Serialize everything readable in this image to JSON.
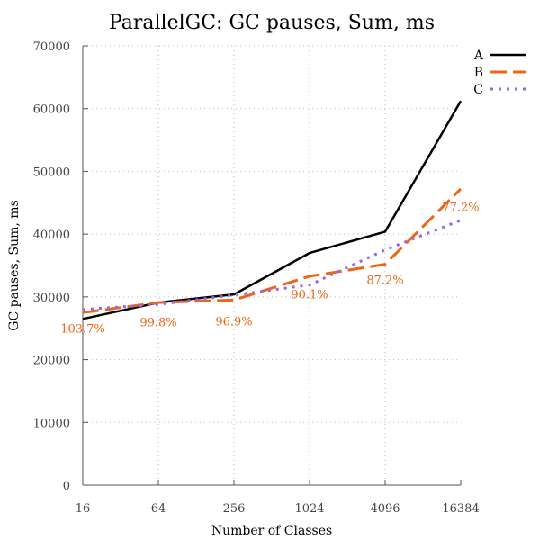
{
  "chart_data": {
    "type": "line",
    "title": "ParallelGC: GC pauses, Sum, ms",
    "xlabel": "Number of Classes",
    "ylabel": "GC pauses, Sum, ms",
    "x_scale": "log2",
    "categories": [
      "16",
      "64",
      "256",
      "1024",
      "4096",
      "16384"
    ],
    "x": [
      16,
      64,
      256,
      1024,
      4096,
      16384
    ],
    "ylim": [
      0,
      70000
    ],
    "yticks": [
      0,
      10000,
      20000,
      30000,
      40000,
      50000,
      60000,
      70000
    ],
    "grid": true,
    "legend_position": "top-right",
    "series": [
      {
        "name": "A",
        "color": "#000000",
        "style": "solid",
        "values": [
          26500,
          29100,
          30400,
          37000,
          40400,
          61200
        ]
      },
      {
        "name": "B",
        "color": "#ee6611",
        "style": "dashed",
        "values": [
          27500,
          29100,
          29500,
          33300,
          35200,
          47200
        ]
      },
      {
        "name": "C",
        "color": "#9966ee",
        "style": "dotted",
        "values": [
          28000,
          28800,
          30300,
          31900,
          37500,
          42200
        ]
      }
    ],
    "annotations": [
      {
        "x": 16,
        "y": 25000,
        "text": "103.7%",
        "color": "#ee6611"
      },
      {
        "x": 64,
        "y": 26000,
        "text": "99.8%",
        "color": "#ee6611"
      },
      {
        "x": 256,
        "y": 26200,
        "text": "96.9%",
        "color": "#ee6611"
      },
      {
        "x": 1024,
        "y": 30500,
        "text": "90.1%",
        "color": "#ee6611"
      },
      {
        "x": 4096,
        "y": 32800,
        "text": "87.2%",
        "color": "#ee6611"
      },
      {
        "x": 16384,
        "y": 44400,
        "text": "77.2%",
        "color": "#ee6611"
      }
    ]
  }
}
